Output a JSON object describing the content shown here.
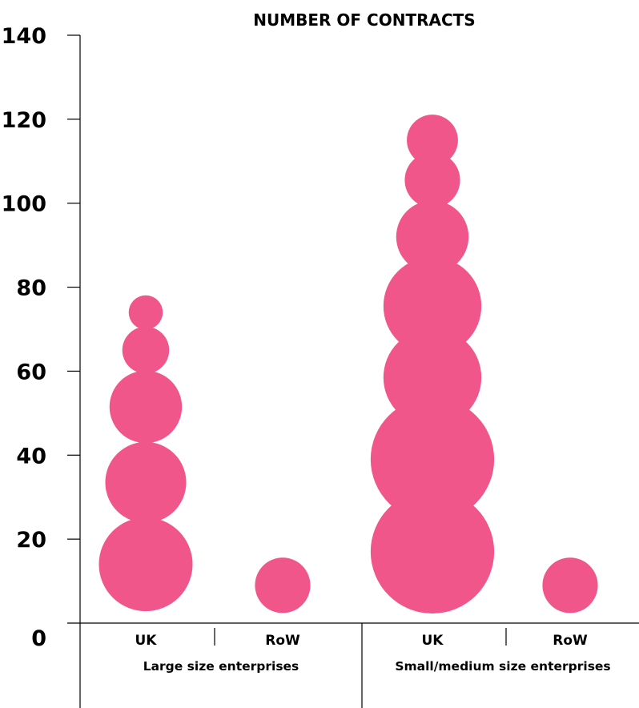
{
  "chart_data": {
    "type": "bubble",
    "title": "NUMBER OF CONTRACTS",
    "ylim": [
      0,
      140
    ],
    "yticks": [
      "0",
      "20",
      "40",
      "60",
      "80",
      "100",
      "120",
      "140"
    ],
    "categories": [
      "UK",
      "RoW",
      "UK",
      "RoW"
    ],
    "groups": [
      {
        "label": "Large size enterprises",
        "categories": [
          0,
          1
        ]
      },
      {
        "label": "Small/medium size enterprises",
        "categories": [
          2,
          3
        ]
      }
    ],
    "bubble_color": "#f0568a",
    "bubbles": [
      {
        "category": 0,
        "y": 14,
        "size": 22
      },
      {
        "category": 0,
        "y": 33.5,
        "size": 19
      },
      {
        "category": 0,
        "y": 51.5,
        "size": 17
      },
      {
        "category": 0,
        "y": 65,
        "size": 11
      },
      {
        "category": 0,
        "y": 74,
        "size": 8
      },
      {
        "category": 1,
        "y": 9,
        "size": 13
      },
      {
        "category": 2,
        "y": 17,
        "size": 29
      },
      {
        "category": 2,
        "y": 39,
        "size": 29
      },
      {
        "category": 2,
        "y": 58.5,
        "size": 23
      },
      {
        "category": 2,
        "y": 75.5,
        "size": 23
      },
      {
        "category": 2,
        "y": 92,
        "size": 17
      },
      {
        "category": 2,
        "y": 105.5,
        "size": 13
      },
      {
        "category": 2,
        "y": 115,
        "size": 12
      },
      {
        "category": 3,
        "y": 9,
        "size": 13
      }
    ]
  }
}
